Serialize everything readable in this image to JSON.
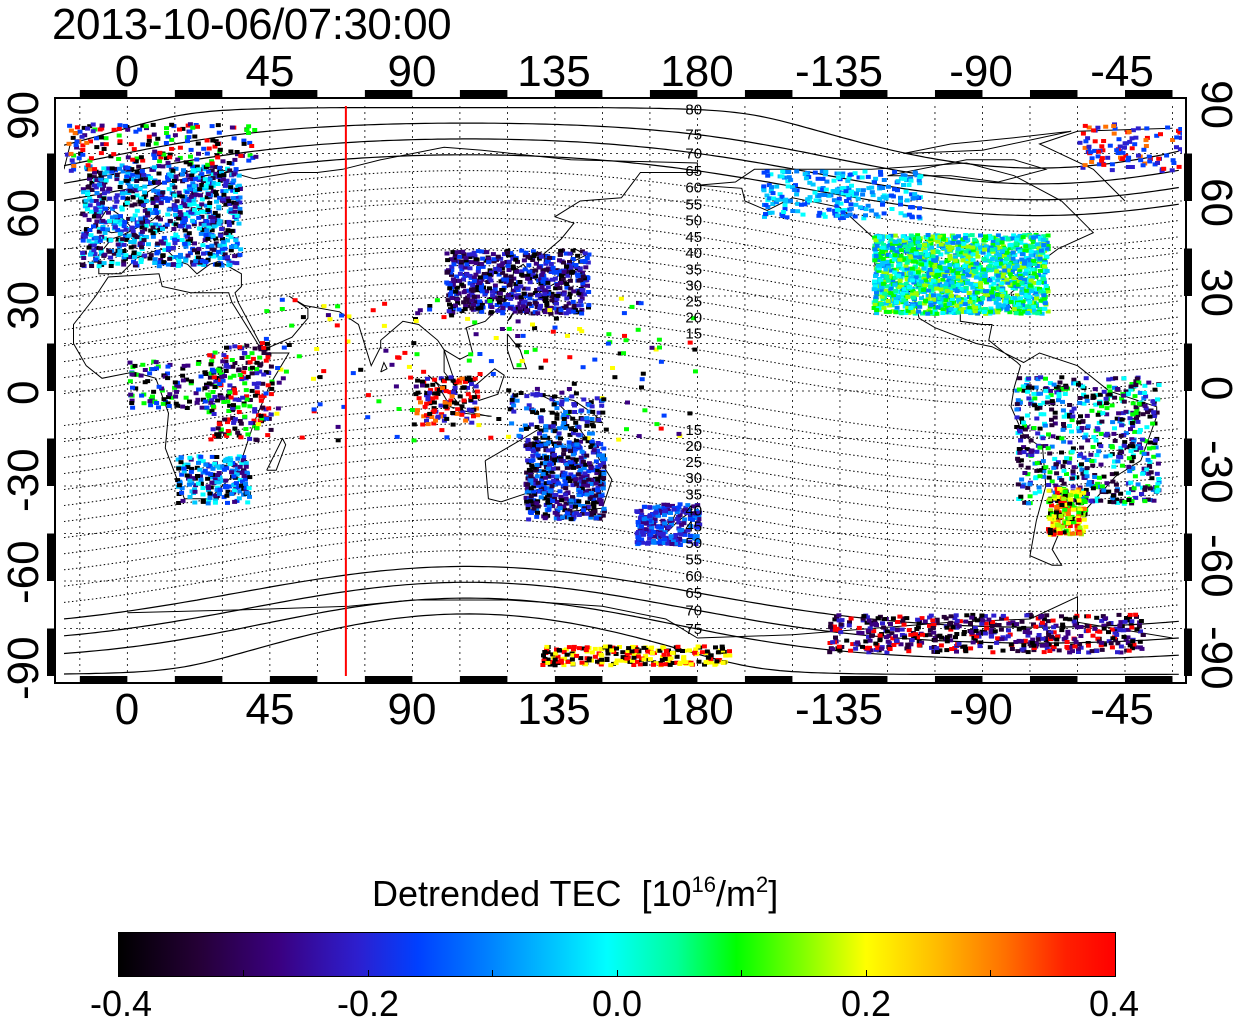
{
  "title": "2013-10-06/07:30:00",
  "axes": {
    "top_ticks": [
      "0",
      "45",
      "90",
      "135",
      "180",
      "-135",
      "-90",
      "-45"
    ],
    "bottom_ticks": [
      "0",
      "45",
      "90",
      "135",
      "180",
      "-135",
      "-90",
      "-45"
    ],
    "left_ticks": [
      "90",
      "60",
      "30",
      "0",
      "-30",
      "-60",
      "-90"
    ],
    "right_ticks": [
      "90",
      "60",
      "30",
      "0",
      "-30",
      "-60",
      "-90"
    ]
  },
  "contour_labels": [
    "80",
    "75",
    "70",
    "65",
    "60",
    "55",
    "50",
    "45",
    "40",
    "35",
    "30",
    "25",
    "20",
    "15",
    "15",
    "20",
    "25",
    "30",
    "35",
    "40",
    "45",
    "50",
    "55",
    "60",
    "65",
    "70",
    "75"
  ],
  "colorbar": {
    "title": "Detrended TEC",
    "unit_prefix": "[10",
    "unit_exp1": "16",
    "unit_mid": "/m",
    "unit_exp2": "2",
    "unit_suffix": "]",
    "ticks": [
      "-0.4",
      "-0.2",
      "0.0",
      "0.2",
      "0.4"
    ],
    "min": -0.4,
    "max": 0.4
  },
  "colors": {
    "marker_line": "#ff0000",
    "coast": "#000000",
    "grid": "#000000"
  },
  "map": {
    "lon_start": -20,
    "lon_end": 333,
    "lat_min": -90,
    "lat_max": 90,
    "marker_longitude": 69
  }
}
